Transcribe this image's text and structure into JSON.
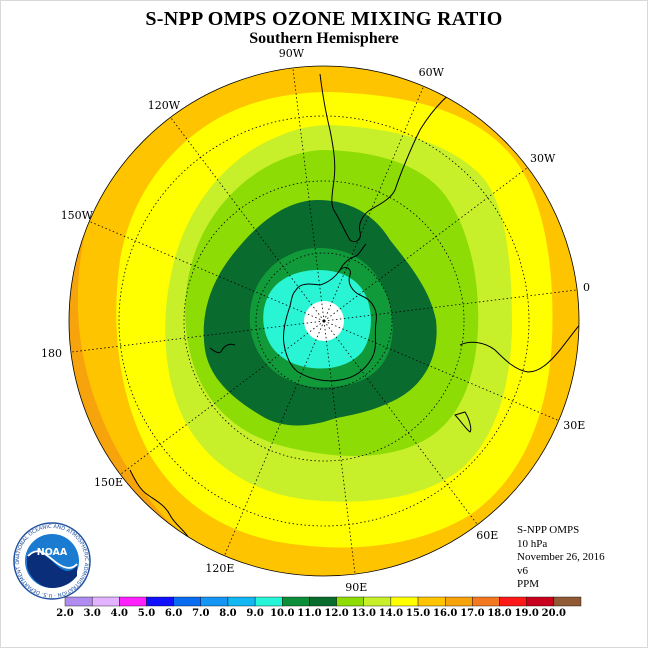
{
  "header": {
    "title": "S-NPP OMPS OZONE MIXING RATIO",
    "subtitle": "Southern Hemisphere"
  },
  "map": {
    "projection": "south polar stereographic",
    "longitude_labels": [
      "0",
      "30E",
      "60E",
      "90E",
      "120E",
      "150E",
      "180",
      "150W",
      "120W",
      "90W",
      "60W",
      "30W"
    ],
    "fill_colors": {
      "9.0-10.0": "#29f5d4",
      "10.0-11.0": "#119a3a",
      "11.0-12.0": "#0a6b2f",
      "12.0-13.0": "#8edc06",
      "13.0-14.0": "#c8f02a",
      "14.0-15.0": "#ffff00",
      "15.0-16.0": "#ffc400",
      "16.0-17.0": "#f6a30c",
      "polar_no_data": "#ffffff"
    }
  },
  "info": {
    "lines": [
      "S-NPP OMPS",
      "10 hPa",
      "November 26, 2016",
      "v6",
      "PPM"
    ]
  },
  "logo": {
    "text": "NOAA",
    "ring_text": "NATIONAL OCEANIC AND ATMOSPHERIC ADMINISTRATION · U.S. DEPARTMENT OF COMMERCE"
  },
  "legend": {
    "labels": [
      "2.0",
      "3.0",
      "4.0",
      "5.0",
      "6.0",
      "7.0",
      "8.0",
      "9.0",
      "10.0",
      "11.0",
      "12.0",
      "13.0",
      "14.0",
      "15.0",
      "16.0",
      "17.0",
      "18.0",
      "19.0",
      "20.0"
    ],
    "colors": [
      "#b18cf0",
      "#e3b3ff",
      "#ff20ff",
      "#1010ff",
      "#0a6cf0",
      "#1596f5",
      "#12b7f3",
      "#27f5d8",
      "#0c8d38",
      "#0a6b2f",
      "#8edc06",
      "#c8f02a",
      "#ffff00",
      "#ffc400",
      "#f6a30c",
      "#f47820",
      "#ff1818",
      "#c8001e",
      "#8f5a34"
    ]
  }
}
